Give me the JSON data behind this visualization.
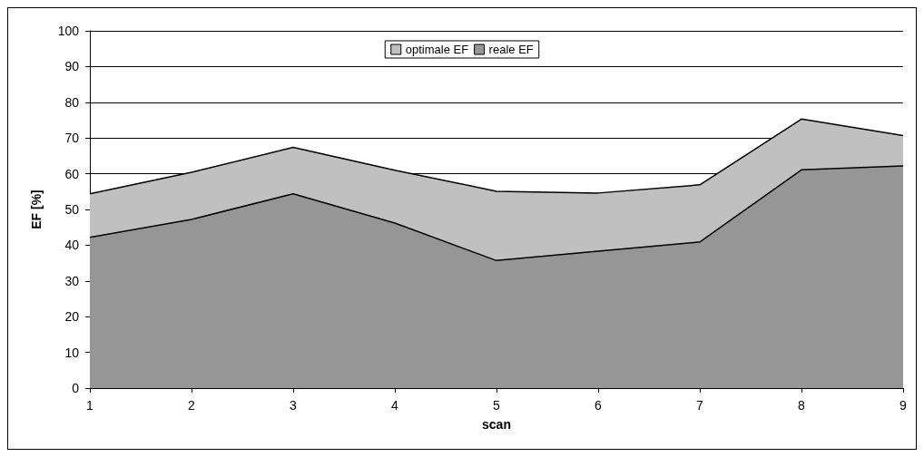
{
  "chart_data": {
    "type": "area",
    "xlabel": "scan",
    "ylabel": "EF [%]",
    "categories": [
      "1",
      "2",
      "3",
      "4",
      "5",
      "6",
      "7",
      "8",
      "9"
    ],
    "series": [
      {
        "name": "optimale EF",
        "color": "#c0c0c0",
        "values": [
          54.4,
          60.4,
          67.4,
          61,
          55.1,
          54.6,
          56.9,
          75.3,
          70.7
        ]
      },
      {
        "name": "reale EF",
        "color": "#969696",
        "values": [
          42.2,
          47.2,
          54.4,
          46.2,
          35.7,
          38.3,
          40.9,
          61.1,
          62.2
        ]
      }
    ],
    "ylim": [
      0,
      100
    ],
    "yticks": [
      0,
      10,
      20,
      30,
      40,
      50,
      60,
      70,
      80,
      90,
      100
    ],
    "grid": "y",
    "legend": "top",
    "marker": "none"
  }
}
